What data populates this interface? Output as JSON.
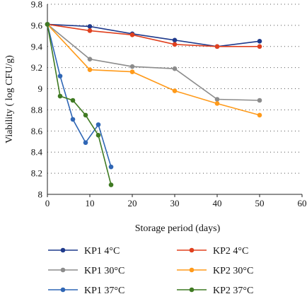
{
  "chart_data": {
    "type": "line",
    "title": "",
    "xlabel": "Storage period (days)",
    "ylabel": "Viability ( log CFU/g)",
    "xlim": [
      0,
      60
    ],
    "ylim": [
      8,
      9.8
    ],
    "x_ticks": [
      "0",
      "10",
      "20",
      "30",
      "40",
      "50",
      "60"
    ],
    "y_ticks": [
      "8",
      "8.2",
      "8.4",
      "8.6",
      "8.8",
      "9",
      "9.2",
      "9.4",
      "9.6",
      "9.8"
    ],
    "grid": "horizontal dotted",
    "legend_position": "bottom",
    "series": [
      {
        "name": "KP1 4°C",
        "color": "#1f3a8c",
        "x": [
          0,
          10,
          20,
          30,
          40,
          50
        ],
        "y": [
          9.61,
          9.59,
          9.52,
          9.46,
          9.4,
          9.45
        ]
      },
      {
        "name": "KP2 4°C",
        "color": "#e0401e",
        "x": [
          0,
          10,
          20,
          30,
          40,
          50
        ],
        "y": [
          9.61,
          9.55,
          9.51,
          9.42,
          9.4,
          9.4
        ]
      },
      {
        "name": "KP1 30°C",
        "color": "#8c8c8c",
        "x": [
          0,
          10,
          20,
          30,
          40,
          50
        ],
        "y": [
          9.61,
          9.28,
          9.21,
          9.19,
          8.9,
          8.89
        ]
      },
      {
        "name": "KP2 30°C",
        "color": "#ff9a1a",
        "x": [
          0,
          10,
          20,
          30,
          40,
          50
        ],
        "y": [
          9.61,
          9.18,
          9.16,
          8.98,
          8.86,
          8.75
        ]
      },
      {
        "name": "KP1 37°C",
        "color": "#2f66b5",
        "x": [
          0,
          3,
          6,
          9,
          12,
          15
        ],
        "y": [
          9.61,
          9.12,
          8.71,
          8.49,
          8.66,
          8.26
        ]
      },
      {
        "name": "KP2 37°C",
        "color": "#3f7a22",
        "x": [
          0,
          3,
          6,
          9,
          12,
          15
        ],
        "y": [
          9.61,
          8.93,
          8.89,
          8.75,
          8.56,
          8.09
        ]
      }
    ]
  }
}
